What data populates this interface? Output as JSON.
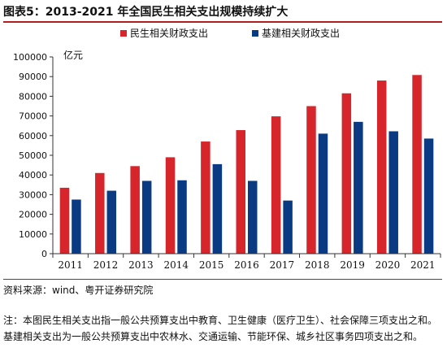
{
  "figure": {
    "title": "图表5：2013-2021 年全国民生相关支出规模持续扩大",
    "source": "资料来源：wind、粤开证券研究院",
    "note": "注：本图民生相关支出指一般公共预算支出中教育、卫生健康（医疗卫生）、社会保障三项支出之和。基建相关支出为一般公共预算支出中农林水、交通运输、节能环保、城乡社区事务四项支出之和。"
  },
  "chart_data": {
    "type": "bar",
    "title": "",
    "xlabel": "",
    "ylabel": "亿元",
    "categories": [
      "2011",
      "2012",
      "2013",
      "2014",
      "2015",
      "2016",
      "2017",
      "2018",
      "2019",
      "2020",
      "2021"
    ],
    "series": [
      {
        "name": "民生相关财政支出",
        "color": "#d7262b",
        "values": [
          33500,
          41000,
          44500,
          49000,
          57000,
          62800,
          69800,
          75000,
          81500,
          88000,
          90800
        ]
      },
      {
        "name": "基建相关财政支出",
        "color": "#0a3a82",
        "values": [
          27500,
          32000,
          37000,
          37300,
          45500,
          37000,
          27000,
          61000,
          67000,
          62200,
          58500
        ]
      }
    ],
    "ylim": [
      0,
      100000
    ],
    "ytick_step": 10000,
    "yticks": [
      "0",
      "10000",
      "20000",
      "30000",
      "40000",
      "50000",
      "60000",
      "70000",
      "80000",
      "90000",
      "100000"
    ],
    "grid": false,
    "legend": "top-center"
  }
}
